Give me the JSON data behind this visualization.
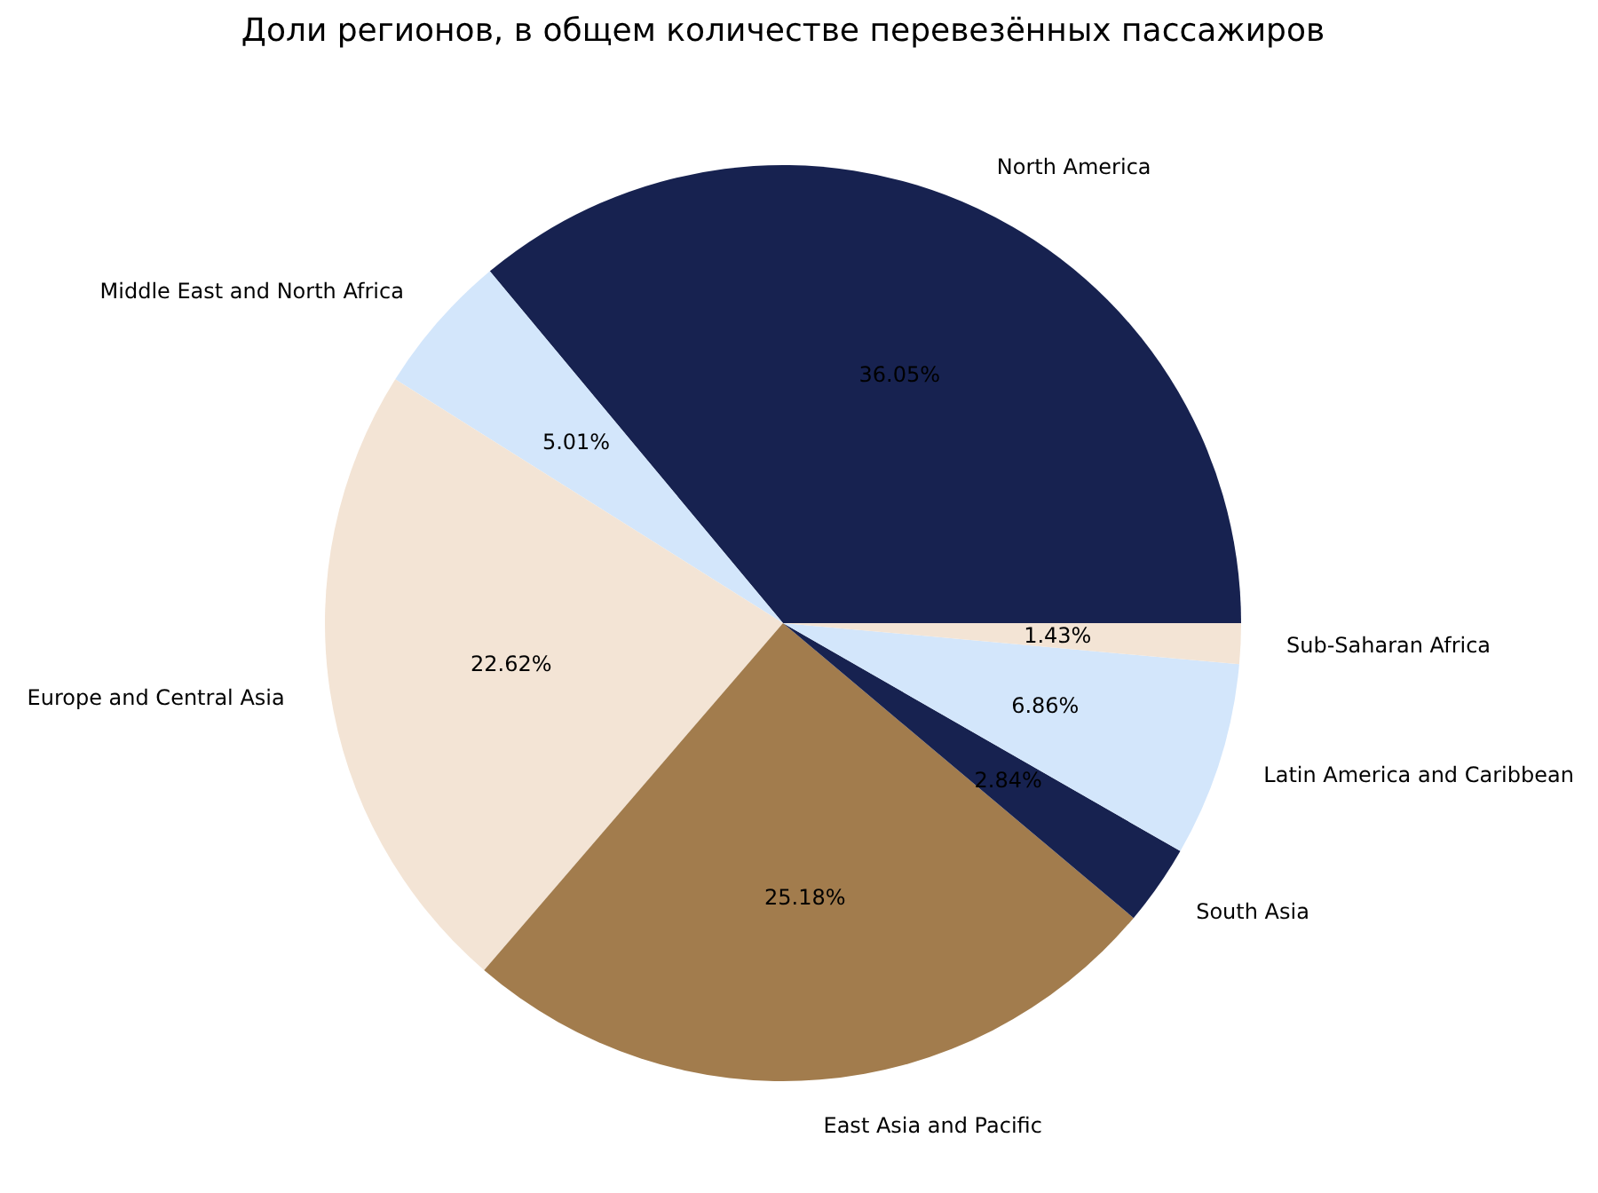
{
  "chart_data": {
    "type": "pie",
    "title": "Доли регионов, в общем количестве перевезённых пассажиров",
    "categories": [
      "North America",
      "Middle East and North Africa",
      "Europe and Central Asia",
      "East Asia and Pacific",
      "South Asia",
      "Latin America and Caribbean",
      "Sub-Saharan Africa"
    ],
    "values": [
      36.05,
      5.01,
      22.62,
      25.18,
      2.84,
      6.86,
      1.43
    ],
    "value_labels": [
      "36.05%",
      "5.01%",
      "22.62%",
      "25.18%",
      "2.84%",
      "6.86%",
      "1.43%"
    ],
    "colors": [
      "#172250",
      "#d3e6fb",
      "#f3e4d5",
      "#a27c4d",
      "#172250",
      "#d3e6fb",
      "#f3e4d5"
    ]
  }
}
